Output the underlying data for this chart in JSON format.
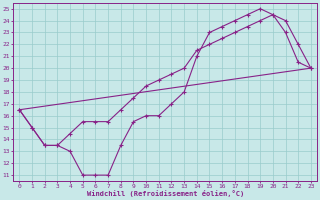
{
  "xlabel": "Windchill (Refroidissement éolien,°C)",
  "xlim": [
    -0.5,
    23.5
  ],
  "ylim": [
    10.5,
    25.5
  ],
  "xticks": [
    0,
    1,
    2,
    3,
    4,
    5,
    6,
    7,
    8,
    9,
    10,
    11,
    12,
    13,
    14,
    15,
    16,
    17,
    18,
    19,
    20,
    21,
    22,
    23
  ],
  "yticks": [
    11,
    12,
    13,
    14,
    15,
    16,
    17,
    18,
    19,
    20,
    21,
    22,
    23,
    24,
    25
  ],
  "bg_color": "#c8e8e8",
  "line_color": "#882288",
  "grid_color": "#99cccc",
  "line1_x": [
    0,
    1,
    2,
    3,
    4,
    5,
    6,
    7,
    8,
    9,
    10,
    11,
    12,
    13,
    14,
    15,
    16,
    17,
    18,
    19,
    20,
    21,
    22,
    23
  ],
  "line1_y": [
    16.5,
    15.0,
    13.5,
    13.5,
    13.0,
    11.0,
    11.0,
    11.0,
    13.5,
    15.5,
    16.0,
    16.0,
    17.0,
    18.0,
    21.0,
    23.0,
    23.5,
    24.0,
    24.5,
    25.0,
    24.5,
    23.0,
    20.5,
    20.0
  ],
  "line2_x": [
    0,
    23
  ],
  "line2_y": [
    16.5,
    20.0
  ],
  "line3_x": [
    0,
    1,
    2,
    3,
    4,
    5,
    6,
    7,
    8,
    9,
    10,
    11,
    12,
    13,
    14,
    15,
    16,
    17,
    18,
    19,
    20,
    21,
    22,
    23
  ],
  "line3_y": [
    16.5,
    15.0,
    13.5,
    13.5,
    14.5,
    15.5,
    15.5,
    15.5,
    16.5,
    17.5,
    18.5,
    19.0,
    19.5,
    20.0,
    21.5,
    22.0,
    22.5,
    23.0,
    23.5,
    24.0,
    24.5,
    24.0,
    22.0,
    20.0
  ]
}
